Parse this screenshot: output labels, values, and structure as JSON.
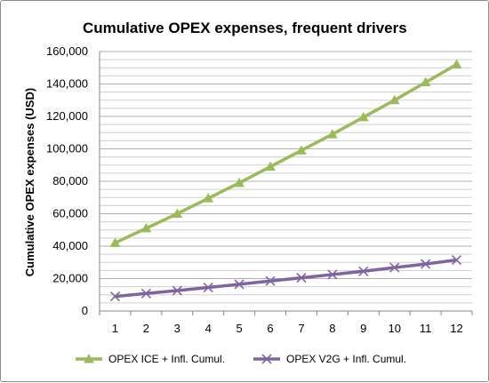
{
  "chart_data": {
    "type": "line",
    "title": "Cumulative OPEX expenses, frequent drivers",
    "xlabel": "",
    "ylabel": "Cumulative OPEX expenses (USD)",
    "x": [
      1,
      2,
      3,
      4,
      5,
      6,
      7,
      8,
      9,
      10,
      11,
      12
    ],
    "x_tick_labels": [
      "1",
      "2",
      "3",
      "4",
      "5",
      "6",
      "7",
      "8",
      "9",
      "10",
      "11",
      "12"
    ],
    "ylim": [
      0,
      160000
    ],
    "y_tick_labels": [
      "0",
      "20,000",
      "40,000",
      "60,000",
      "80,000",
      "100,000",
      "120,000",
      "140,000",
      "160,000"
    ],
    "grid": true,
    "legend_position": "bottom",
    "series": [
      {
        "name": "OPEX ICE + Infl. Cumul.",
        "color": "#9bbb59",
        "marker": "triangle",
        "values": [
          42000,
          51000,
          60000,
          69500,
          79000,
          89000,
          99000,
          109000,
          119500,
          130000,
          141000,
          152000
        ]
      },
      {
        "name": "OPEX V2G + Infl. Cumul.",
        "color": "#8064a2",
        "marker": "x",
        "values": [
          9000,
          10800,
          12600,
          14500,
          16500,
          18500,
          20500,
          22500,
          24500,
          26800,
          29000,
          31500
        ]
      }
    ]
  }
}
